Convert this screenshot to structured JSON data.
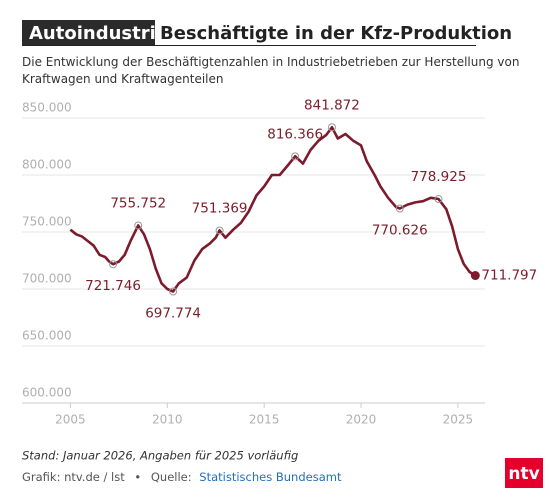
{
  "chart_data": {
    "type": "line",
    "title_tag": "Autoindustrie",
    "title": "Beschäftigte in der Kfz-Produktion",
    "subtitle": "Die Entwicklung der Beschäftigtenzahlen in Industriebetrieben zur Herstellung von Kraftwagen und Kraftwagenteilen",
    "x": [
      2005.0,
      2005.3,
      2005.6,
      2005.9,
      2006.2,
      2006.5,
      2006.8,
      2007.0,
      2007.2,
      2007.5,
      2007.8,
      2008.1,
      2008.5,
      2008.8,
      2009.1,
      2009.4,
      2009.7,
      2010.0,
      2010.3,
      2010.6,
      2011.0,
      2011.4,
      2011.8,
      2012.2,
      2012.5,
      2012.7,
      2013.0,
      2013.4,
      2013.8,
      2014.2,
      2014.6,
      2015.0,
      2015.4,
      2015.8,
      2016.2,
      2016.6,
      2017.0,
      2017.4,
      2017.8,
      2018.2,
      2018.5,
      2018.8,
      2019.2,
      2019.6,
      2020.0,
      2020.3,
      2020.7,
      2021.0,
      2021.4,
      2021.8,
      2022.0,
      2022.4,
      2022.8,
      2023.2,
      2023.6,
      2024.0,
      2024.4,
      2024.7,
      2025.0,
      2025.3,
      2025.6,
      2025.9
    ],
    "series": [
      {
        "color": "#7d1b2c",
        "values": [
          752000,
          748000,
          746000,
          742000,
          738000,
          730000,
          728000,
          724000,
          721746,
          724000,
          730000,
          742000,
          755752,
          748000,
          735000,
          718000,
          705000,
          700000,
          697774,
          705000,
          710000,
          725000,
          735000,
          740000,
          745000,
          751369,
          745000,
          752000,
          758000,
          768000,
          782000,
          790000,
          800000,
          800000,
          808000,
          816366,
          810000,
          822000,
          830000,
          835000,
          841872,
          832000,
          836000,
          830000,
          826000,
          812000,
          800000,
          790000,
          780000,
          772000,
          770626,
          774000,
          776000,
          777000,
          780000,
          778925,
          770000,
          755000,
          735000,
          722000,
          715000,
          711797
        ]
      }
    ],
    "annotations": [
      {
        "x": 2007.2,
        "value": 721746,
        "label": "721.746"
      },
      {
        "x": 2008.5,
        "value": 755752,
        "label": "755.752"
      },
      {
        "x": 2010.3,
        "value": 697774,
        "label": "697.774"
      },
      {
        "x": 2012.7,
        "value": 751369,
        "label": "751.369"
      },
      {
        "x": 2016.6,
        "value": 816366,
        "label": "816.366"
      },
      {
        "x": 2018.5,
        "value": 841872,
        "label": "841.872"
      },
      {
        "x": 2022.0,
        "value": 770626,
        "label": "770.626"
      },
      {
        "x": 2024.0,
        "value": 778925,
        "label": "778.925"
      },
      {
        "x": 2025.9,
        "value": 711797,
        "label": "711.797"
      }
    ],
    "xlim": [
      2002.5,
      2026.4
    ],
    "xticks": [
      2005,
      2010,
      2015,
      2020,
      2025
    ],
    "ylim": [
      600000,
      850000
    ],
    "yticks": [
      {
        "value": 600000,
        "label": "600.000"
      },
      {
        "value": 650000,
        "label": "650.000"
      },
      {
        "value": 700000,
        "label": "700.000"
      },
      {
        "value": 750000,
        "label": "750.000"
      },
      {
        "value": 800000,
        "label": "800.000"
      },
      {
        "value": 850000,
        "label": "850.000"
      }
    ],
    "grid": true,
    "note": "Stand: Januar 2026, Angaben für 2025 vorläufig",
    "credit": "Grafik: ntv.de / lst",
    "separator": "•",
    "source_label": "Quelle:",
    "source": "Statistisches Bundesamt",
    "logo": "ntv"
  }
}
